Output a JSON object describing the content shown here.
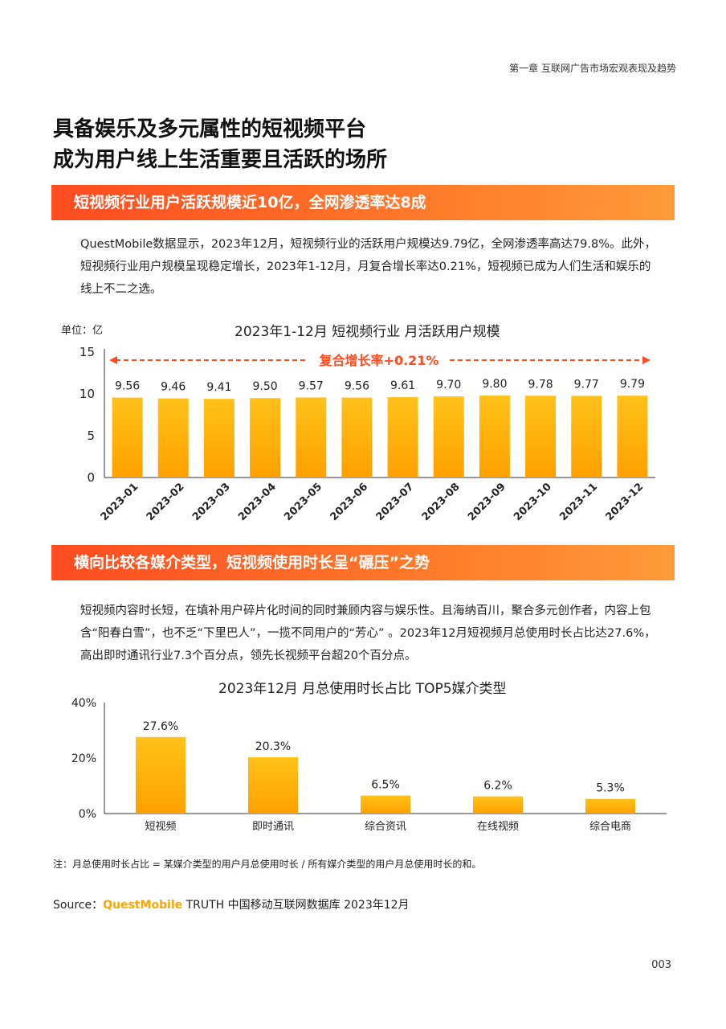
{
  "header": {
    "chapter": "第一章  互联网广告市场宏观表现及趋势"
  },
  "title": {
    "line1": "具备娱乐及多元属性的短视频平台",
    "line2": "成为用户线上生活重要且活跃的场所"
  },
  "section1": {
    "heading": "短视频行业用户活跃规模近10亿，全网渗透率达8成",
    "paragraph": "QuestMobile数据显示，2023年12月，短视频行业的活跃用户规模达9.79亿，全网渗透率高达79.8%。此外，短视频行业用户规模呈现稳定增长，2023年1-12月，月复合增长率达0.21%，短视频已成为人们生活和娱乐的线上不二之选。"
  },
  "section2": {
    "heading": "横向比较各媒介类型，短视频使用时长呈“碾压”之势",
    "paragraph": "短视频内容时长短，在填补用户碎片化时间的同时兼顾内容与娱乐性。且海纳百川，聚合多元创作者，内容上包含“阳春白雪”，也不乏“下里巴人”，一揽不同用户的“芳心” 。2023年12月短视频月总使用时长占比达27.6%，高出即时通讯行业7.3个百分点，领先长视频平台超20个百分点。"
  },
  "note": "注：月总使用时长占比 = 某媒介类型的用户月总使用时长 / 所有媒介类型的用户月总使用时长的和。",
  "source": {
    "prefix": "Source：",
    "brand": "QuestMobile",
    "rest": " TRUTH 中国移动互联网数据库 2023年12月"
  },
  "page_number": "003",
  "colors": {
    "accent": "#ff5a23",
    "bar_top": "#ffc21a",
    "bar_bottom": "#ffa000",
    "annotation": "#ff4b1f"
  },
  "chart_data": [
    {
      "type": "bar",
      "title": "2023年1-12月 短视频行业 月活跃用户规模",
      "unit_label": "单位：亿",
      "annotation": "复合增长率+0.21%",
      "categories": [
        "2023-01",
        "2023-02",
        "2023-03",
        "2023-04",
        "2023-05",
        "2023-06",
        "2023-07",
        "2023-08",
        "2023-09",
        "2023-10",
        "2023-11",
        "2023-12"
      ],
      "values": [
        9.56,
        9.46,
        9.41,
        9.5,
        9.57,
        9.56,
        9.61,
        9.7,
        9.8,
        9.78,
        9.77,
        9.79
      ],
      "value_labels": [
        "9.56",
        "9.46",
        "9.41",
        "9.50",
        "9.57",
        "9.56",
        "9.61",
        "9.70",
        "9.80",
        "9.78",
        "9.77",
        "9.79"
      ],
      "yticks": [
        "0",
        "5",
        "10",
        "15"
      ],
      "ylim": [
        0,
        15
      ],
      "grid": false
    },
    {
      "type": "bar",
      "title": "2023年12月 月总使用时长占比 TOP5媒介类型",
      "categories": [
        "短视频",
        "即时通讯",
        "综合资讯",
        "在线视频",
        "综合电商"
      ],
      "values": [
        27.6,
        20.3,
        6.5,
        6.2,
        5.3
      ],
      "value_labels": [
        "27.6%",
        "20.3%",
        "6.5%",
        "6.2%",
        "5.3%"
      ],
      "yticks": [
        "0%",
        "20%",
        "40%"
      ],
      "ylim": [
        0,
        40
      ],
      "grid": false
    }
  ]
}
